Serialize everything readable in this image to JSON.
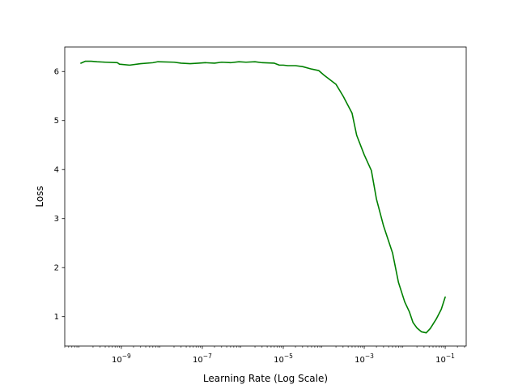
{
  "chart_data": {
    "type": "line",
    "title": "",
    "xlabel": "Learning Rate (Log Scale)",
    "ylabel": "Loss",
    "xscale": "log",
    "xlim": [
      4e-11,
      0.33
    ],
    "ylim": [
      0.4,
      6.5
    ],
    "grid": false,
    "line_color": "#008000",
    "x_ticks": [
      {
        "value": 1e-09,
        "base": "10",
        "exp": "−9"
      },
      {
        "value": 1e-07,
        "base": "10",
        "exp": "−7"
      },
      {
        "value": 1e-05,
        "base": "10",
        "exp": "−5"
      },
      {
        "value": 0.001,
        "base": "10",
        "exp": "−3"
      },
      {
        "value": 0.1,
        "base": "10",
        "exp": "−1"
      }
    ],
    "y_ticks": [
      {
        "value": 1,
        "label": "1"
      },
      {
        "value": 2,
        "label": "2"
      },
      {
        "value": 3,
        "label": "3"
      },
      {
        "value": 4,
        "label": "4"
      },
      {
        "value": 5,
        "label": "5"
      },
      {
        "value": 6,
        "label": "6"
      }
    ],
    "series": [
      {
        "points": [
          [
            1e-10,
            6.17
          ],
          [
            1.3e-10,
            6.21
          ],
          [
            1.8e-10,
            6.21
          ],
          [
            2.5e-10,
            6.2
          ],
          [
            4e-10,
            6.19
          ],
          [
            8e-10,
            6.18
          ],
          [
            9e-10,
            6.15
          ],
          [
            1.6e-09,
            6.13
          ],
          [
            3e-09,
            6.16
          ],
          [
            6e-09,
            6.18
          ],
          [
            8e-09,
            6.2
          ],
          [
            2e-08,
            6.19
          ],
          [
            3e-08,
            6.17
          ],
          [
            5e-08,
            6.16
          ],
          [
            8e-08,
            6.17
          ],
          [
            1.2e-07,
            6.18
          ],
          [
            2e-07,
            6.17
          ],
          [
            3e-07,
            6.19
          ],
          [
            5e-07,
            6.18
          ],
          [
            8e-07,
            6.2
          ],
          [
            1.2e-06,
            6.19
          ],
          [
            2e-06,
            6.2
          ],
          [
            3e-06,
            6.18
          ],
          [
            6e-06,
            6.17
          ],
          [
            8e-06,
            6.13
          ],
          [
            1e-05,
            6.13
          ],
          [
            1.3e-05,
            6.12
          ],
          [
            2e-05,
            6.12
          ],
          [
            3e-05,
            6.1
          ],
          [
            5e-05,
            6.05
          ],
          [
            7.5e-05,
            6.02
          ],
          [
            0.0001,
            5.93
          ],
          [
            0.0002,
            5.74
          ],
          [
            0.0003,
            5.5
          ],
          [
            0.0005,
            5.15
          ],
          [
            0.00065,
            4.7
          ],
          [
            0.001,
            4.3
          ],
          [
            0.0015,
            3.98
          ],
          [
            0.002,
            3.4
          ],
          [
            0.003,
            2.85
          ],
          [
            0.005,
            2.3
          ],
          [
            0.007,
            1.7
          ],
          [
            0.01,
            1.3
          ],
          [
            0.013,
            1.1
          ],
          [
            0.016,
            0.88
          ],
          [
            0.02,
            0.77
          ],
          [
            0.026,
            0.69
          ],
          [
            0.034,
            0.67
          ],
          [
            0.043,
            0.76
          ],
          [
            0.06,
            0.95
          ],
          [
            0.08,
            1.15
          ],
          [
            0.1,
            1.4
          ]
        ]
      }
    ]
  }
}
